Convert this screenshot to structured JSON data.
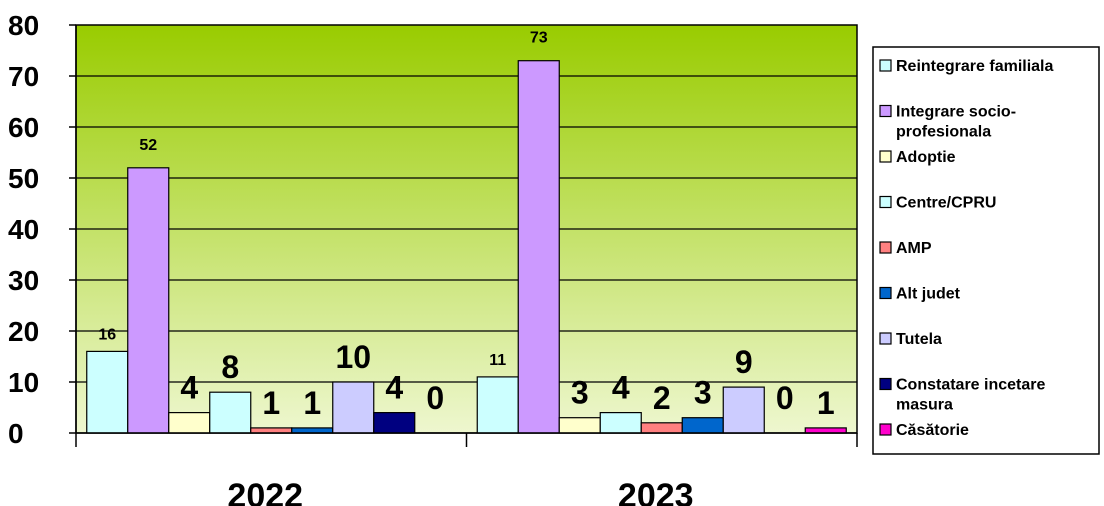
{
  "chart_data": {
    "type": "bar",
    "categories": [
      "2022",
      "2023"
    ],
    "ylim": [
      0,
      80
    ],
    "yticks": [
      0,
      10,
      20,
      30,
      40,
      50,
      60,
      70,
      80
    ],
    "grid": true,
    "legend_position": "right",
    "series": [
      {
        "name": "Reintegrare familiala",
        "color": "#ccffff",
        "values": [
          16,
          11
        ],
        "labels": [
          "16",
          "11"
        ]
      },
      {
        "name": "Integrare socio-profesionala",
        "color": "#cc99ff",
        "values": [
          52,
          73
        ],
        "labels": [
          "52",
          "73"
        ]
      },
      {
        "name": "Adoptie",
        "color": "#ffffcc",
        "values": [
          4,
          3
        ],
        "labels": [
          "4",
          "3"
        ]
      },
      {
        "name": "Centre/CPRU",
        "color": "#ccffff",
        "values": [
          8,
          4
        ],
        "labels": [
          "8",
          "4"
        ]
      },
      {
        "name": "AMP",
        "color": "#ff8080",
        "values": [
          1,
          2
        ],
        "labels": [
          "1",
          "2"
        ]
      },
      {
        "name": "Alt judet",
        "color": "#0066cc",
        "values": [
          1,
          3
        ],
        "labels": [
          "1",
          "3"
        ]
      },
      {
        "name": "Tutela",
        "color": "#ccccff",
        "values": [
          10,
          9
        ],
        "labels": [
          "10",
          "9"
        ]
      },
      {
        "name": "Constatare incetare masura",
        "color": "#000080",
        "values": [
          4,
          0
        ],
        "labels": [
          "4",
          "0"
        ]
      },
      {
        "name": "Căsătorie",
        "color": "#ff00cc",
        "values": [
          0,
          1
        ],
        "labels": [
          "0",
          "1"
        ]
      }
    ]
  }
}
